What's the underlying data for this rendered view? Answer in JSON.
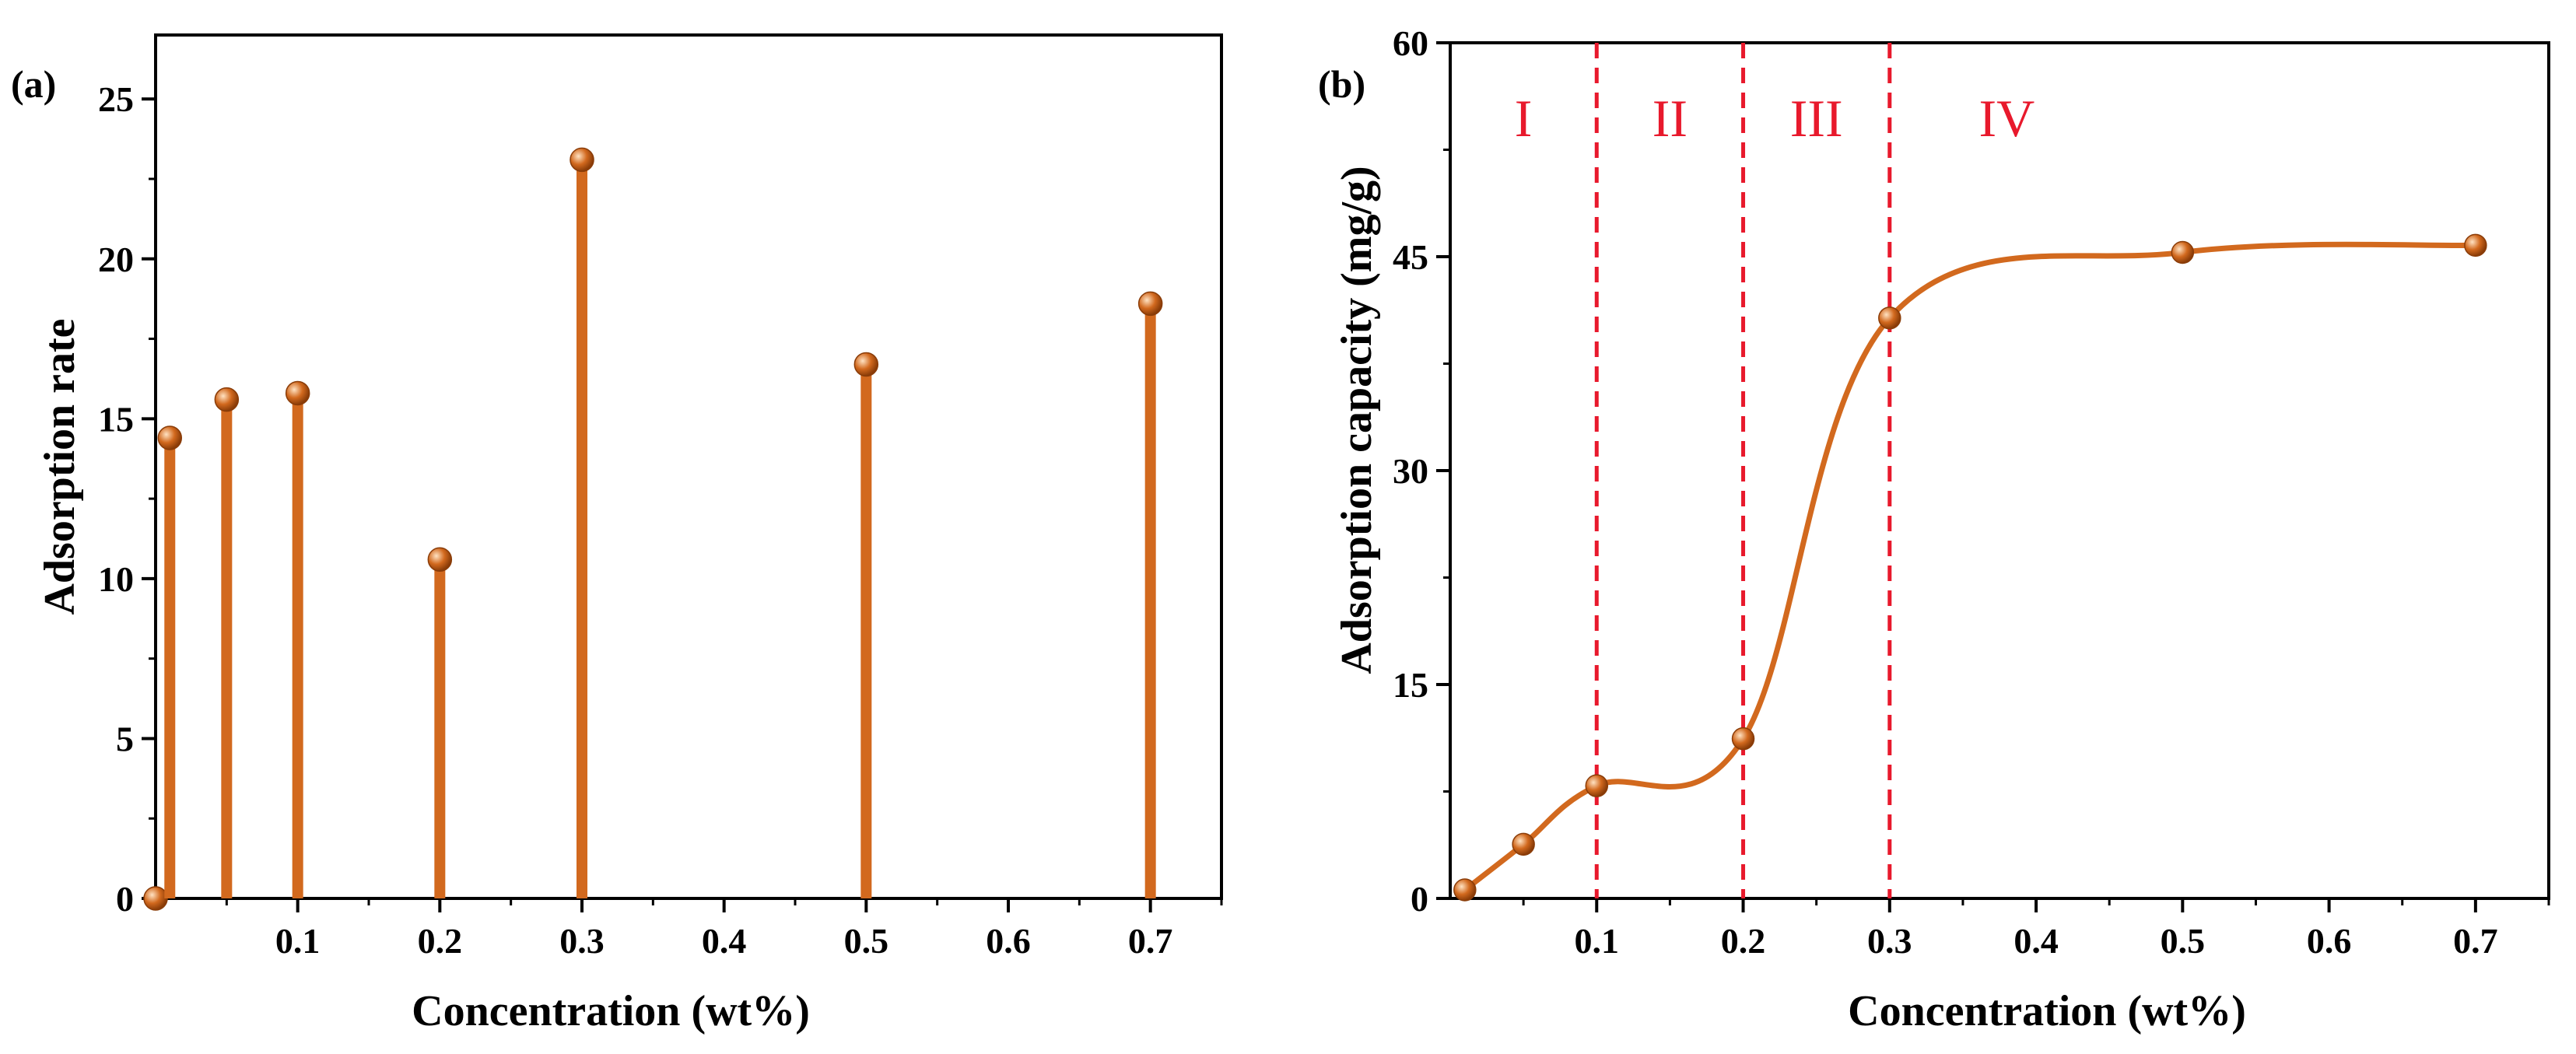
{
  "chart_data": [
    {
      "panel": "(a)",
      "type": "bar",
      "style": "lollipop",
      "color": "#d2691e",
      "xlabel": "Concentration (wt%)",
      "ylabel": "Adsorption rate",
      "xlim": [
        0,
        0.75
      ],
      "ylim": [
        0,
        27
      ],
      "xticks": [
        "0.1",
        "0.2",
        "0.3",
        "0.4",
        "0.5",
        "0.6",
        "0.7"
      ],
      "yticks": [
        "0",
        "5",
        "10",
        "15",
        "20",
        "25"
      ],
      "x": [
        0.0,
        0.01,
        0.05,
        0.1,
        0.2,
        0.3,
        0.5,
        0.7
      ],
      "values": [
        0,
        14.4,
        15.6,
        15.8,
        10.6,
        23.1,
        16.7,
        18.6
      ]
    },
    {
      "panel": "(b)",
      "type": "line",
      "style": "smooth-with-markers",
      "color": "#d2691e",
      "xlabel": "Concentration (wt%)",
      "ylabel": "Adsorption capacity (mg/g)",
      "xlim": [
        0,
        0.75
      ],
      "ylim": [
        0,
        60
      ],
      "xticks": [
        "0.1",
        "0.2",
        "0.3",
        "0.4",
        "0.5",
        "0.6",
        "0.7"
      ],
      "yticks": [
        "0",
        "15",
        "30",
        "45",
        "60"
      ],
      "x": [
        0.01,
        0.05,
        0.1,
        0.2,
        0.3,
        0.5,
        0.7
      ],
      "y": [
        0.6,
        3.8,
        7.9,
        11.2,
        40.7,
        45.3,
        45.8
      ],
      "dividers": [
        0.1,
        0.2,
        0.3
      ],
      "divider_color": "#e8192c",
      "regions": [
        {
          "label": "I",
          "x": 0.05
        },
        {
          "label": "II",
          "x": 0.15
        },
        {
          "label": "III",
          "x": 0.25
        },
        {
          "label": "IV",
          "x": 0.38
        }
      ]
    }
  ]
}
